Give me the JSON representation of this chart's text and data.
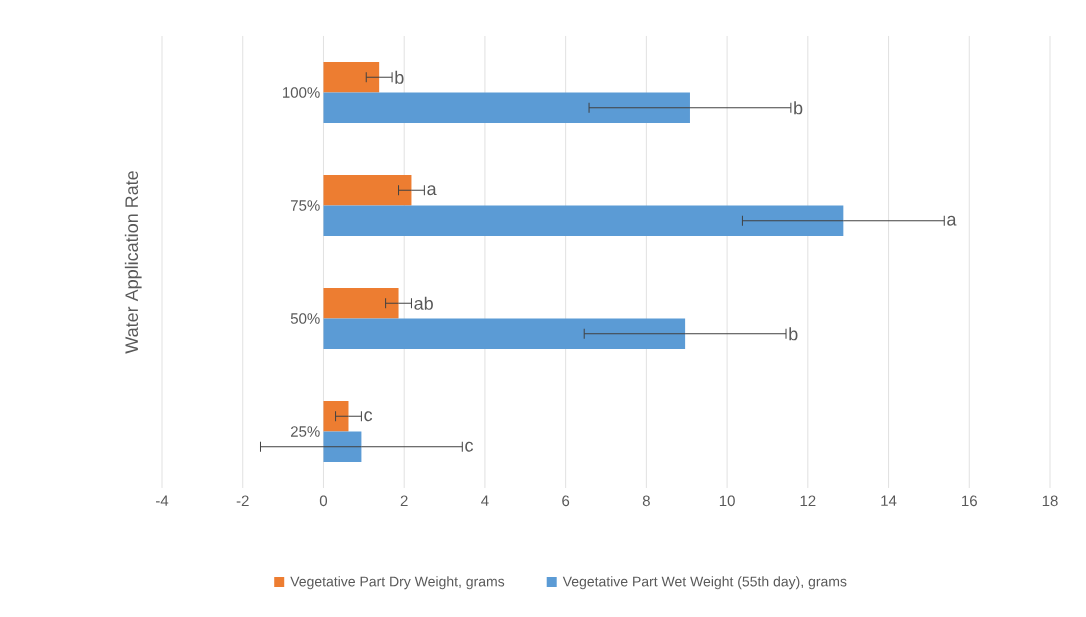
{
  "chart_data": {
    "type": "bar",
    "orientation": "horizontal",
    "ylabel": "Water Application Rate",
    "categories": [
      "100%",
      "75%",
      "50%",
      "25%"
    ],
    "series": [
      {
        "name": "Vegetative Part Dry Weight, grams",
        "color": "#ed7d31",
        "values": [
          1.38,
          2.18,
          1.86,
          0.62
        ],
        "errors": [
          0.32,
          0.32,
          0.32,
          0.32
        ]
      },
      {
        "name": "Vegetative Part Wet Weight (55th day), grams",
        "color": "#5b9bd5",
        "values": [
          9.08,
          12.88,
          8.96,
          0.94
        ],
        "errors": [
          2.5,
          2.5,
          2.5,
          2.5
        ]
      }
    ],
    "annotations": [
      "b",
      "b",
      "a",
      "a",
      "ab",
      "b",
      "c",
      "c"
    ],
    "xlim": [
      -4,
      18
    ],
    "xticks": [
      -4,
      -2,
      0,
      2,
      4,
      6,
      8,
      10,
      12,
      14,
      16,
      18
    ],
    "grid": "x",
    "legend": "bottom"
  }
}
